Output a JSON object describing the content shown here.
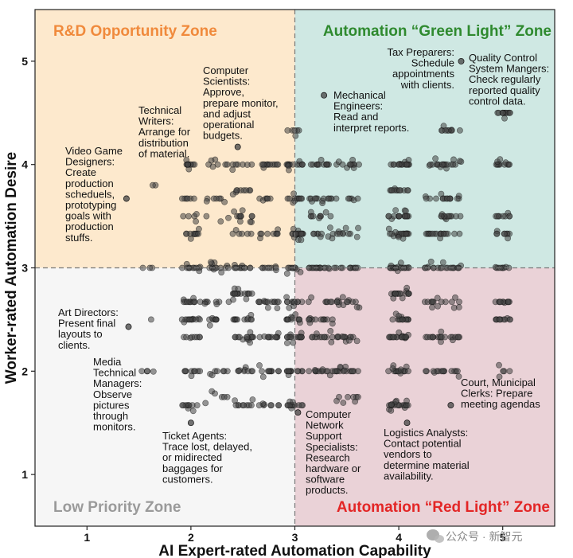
{
  "chart_data": {
    "type": "scatter",
    "xlabel": "AI Expert-rated Automation Capability",
    "ylabel": "Worker-rated Automation Desire",
    "xlim": [
      0.5,
      5.5
    ],
    "ylim": [
      0.5,
      5.5
    ],
    "x_ticks": [
      "1",
      "2",
      "3",
      "4",
      "5"
    ],
    "y_ticks": [
      "1",
      "2",
      "3",
      "4",
      "5"
    ],
    "divider": {
      "x": 3,
      "y": 3,
      "style": "dashed"
    },
    "zones": [
      {
        "name": "R&D Opportunity Zone",
        "color": "#f08a3c",
        "fill": "#fde9cd",
        "quadrant": "top-left"
      },
      {
        "name": "Automation “Green Light” Zone",
        "color": "#2f8a2f",
        "fill": "#cfe8e3",
        "quadrant": "top-right"
      },
      {
        "name": "Low Priority Zone",
        "color": "#9a9a9a",
        "fill": "#f6f6f6",
        "quadrant": "bottom-left"
      },
      {
        "name": "Automation “Red Light” Zone",
        "color": "#e32626",
        "fill": "#ead2d7",
        "quadrant": "bottom-right"
      }
    ],
    "point_style": {
      "fill": "#444444",
      "opacity": 0.55,
      "stroke": "#111111"
    },
    "annotations": [
      {
        "lines": [
          "Computer",
          "Scientists:",
          "Approve,",
          "prepare monitor,",
          "and adjust",
          "operational",
          "budgets."
        ],
        "point": [
          2.45,
          4.17
        ]
      },
      {
        "lines": [
          "Technical",
          "Writers:",
          "Arrange for",
          "distribution",
          "of material."
        ],
        "point": [
          1.97,
          4.0
        ]
      },
      {
        "lines": [
          "Video Game",
          "Designers:",
          "Create",
          "production",
          "scheduels,",
          "prototyping",
          "goals with",
          "production",
          "stuffs."
        ],
        "point": [
          1.38,
          3.67
        ]
      },
      {
        "lines": [
          "Mechanical",
          "Engineers:",
          "Read and",
          "interpret reports."
        ],
        "point": [
          3.28,
          4.67
        ]
      },
      {
        "lines": [
          "Tax Preparers:",
          "Schedule",
          "appointments",
          "with clients."
        ],
        "point": [
          4.6,
          5.0
        ]
      },
      {
        "lines": [
          "Quality Control",
          "System Mangers:",
          "Check regularly",
          "reported quality",
          "control data."
        ],
        "point": [
          5.0,
          4.5
        ]
      },
      {
        "lines": [
          "Art Directors:",
          "Present final",
          "layouts to",
          "clients."
        ],
        "point": [
          1.4,
          2.43
        ]
      },
      {
        "lines": [
          "Media",
          "Technical",
          "Managers:",
          "Observe",
          "pictures",
          "through",
          "monitors."
        ],
        "point": [
          1.58,
          2.0
        ]
      },
      {
        "lines": [
          "Ticket Agents:",
          "Trace lost, delayed,",
          "or midirected",
          "baggages for",
          "customers."
        ],
        "point": [
          2.0,
          1.5
        ]
      },
      {
        "lines": [
          "Computer",
          "Network",
          "Support",
          "Specialists:",
          "Research",
          "hardware or",
          "software",
          "products."
        ],
        "point": [
          3.03,
          1.6
        ]
      },
      {
        "lines": [
          "Logistics Analysts:",
          "Contact potential",
          "vendors to",
          "determine material",
          "availability."
        ],
        "point": [
          4.08,
          1.5
        ]
      },
      {
        "lines": [
          "Court, Municipal",
          "Clerks: Prepare",
          "meeting agendas"
        ],
        "point": [
          4.5,
          1.67
        ]
      }
    ],
    "clusters": [
      {
        "x_center": 1.58,
        "x_spread": 0.08,
        "y_values": [
          3.3,
          3.0,
          2.5,
          2.2,
          3.8,
          2.0
        ],
        "count": 8
      },
      {
        "x_center": 2.0,
        "x_spread": 0.09,
        "y_values": [
          4.0,
          3.67,
          3.5,
          3.33,
          3.0,
          2.67,
          2.5,
          2.33,
          2.0,
          1.67
        ],
        "count": 95
      },
      {
        "x_center": 2.25,
        "x_spread": 0.12,
        "y_values": [
          4.0,
          3.67,
          3.5,
          3.0,
          2.67,
          2.5,
          2.0,
          1.75
        ],
        "count": 60
      },
      {
        "x_center": 2.5,
        "x_spread": 0.1,
        "y_values": [
          4.0,
          3.75,
          3.5,
          3.33,
          3.0,
          2.75,
          2.5,
          2.33,
          2.0,
          1.67
        ],
        "count": 110
      },
      {
        "x_center": 2.75,
        "x_spread": 0.1,
        "y_values": [
          4.0,
          3.67,
          3.33,
          3.0,
          2.67,
          2.33,
          2.0,
          1.67
        ],
        "count": 80
      },
      {
        "x_center": 3.0,
        "x_spread": 0.08,
        "y_values": [
          4.33,
          4.0,
          3.67,
          3.33,
          3.0,
          2.67,
          2.5,
          2.33,
          2.0,
          1.67
        ],
        "count": 130
      },
      {
        "x_center": 3.25,
        "x_spread": 0.12,
        "y_values": [
          4.0,
          3.67,
          3.5,
          3.33,
          3.0,
          2.67,
          2.5,
          2.33,
          2.0
        ],
        "count": 110
      },
      {
        "x_center": 3.5,
        "x_spread": 0.12,
        "y_values": [
          4.0,
          3.67,
          3.33,
          3.0,
          2.67,
          2.33,
          2.0,
          1.75
        ],
        "count": 90
      },
      {
        "x_center": 4.0,
        "x_spread": 0.1,
        "y_values": [
          4.0,
          3.75,
          3.5,
          3.33,
          3.0,
          2.75,
          2.5,
          2.33,
          2.0,
          1.67
        ],
        "count": 180
      },
      {
        "x_center": 4.33,
        "x_spread": 0.08,
        "y_values": [
          4.0,
          3.67,
          3.33,
          3.0,
          2.67,
          2.33,
          2.0
        ],
        "count": 55
      },
      {
        "x_center": 4.5,
        "x_spread": 0.1,
        "y_values": [
          4.33,
          4.0,
          3.67,
          3.5,
          3.33,
          3.0,
          2.67,
          2.33,
          2.0
        ],
        "count": 95
      },
      {
        "x_center": 5.0,
        "x_spread": 0.07,
        "y_values": [
          4.5,
          4.0,
          3.5,
          3.33,
          3.0,
          2.67,
          2.5,
          2.0
        ],
        "count": 75
      }
    ]
  },
  "watermark": "公众号 · 新智元",
  "watermark_icon": "wechat-icon"
}
